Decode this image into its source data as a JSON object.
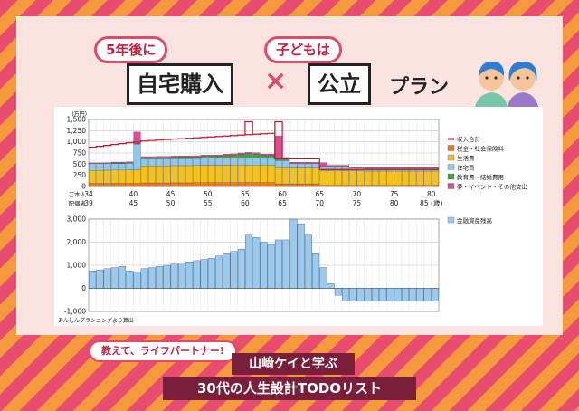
{
  "header": {
    "tag1": "5年後に",
    "box1": "自宅購入",
    "times": "×",
    "tag2": "子どもは",
    "box2": "公立",
    "plan": "プラン"
  },
  "footer": {
    "catch": "教えて、ライフパートナー!",
    "banner1": "山﨑ケイと学ぶ",
    "banner2": "30代の人生設計TODOリスト"
  },
  "source": "あんしんプランニングより算出",
  "colors": {
    "income": "#c8102e",
    "tax": "#ee7a1a",
    "living": "#f4c21e",
    "housing": "#8fc8ec",
    "education": "#3fa33f",
    "dream": "#d94f92",
    "assets": "#9cc9ec"
  },
  "chart_data": [
    {
      "type": "bar",
      "stacked": true,
      "ylabel": "(万円)",
      "ylim": [
        0,
        1500
      ],
      "yticks": [
        "0",
        "250",
        "500",
        "750",
        "1,000",
        "1,250",
        "1,500"
      ],
      "xaxis_rows": [
        {
          "label": "ご本人",
          "ticks": [
            "34",
            "40",
            "45",
            "50",
            "55",
            "60",
            "65",
            "70",
            "75",
            "80"
          ]
        },
        {
          "label": "配偶者",
          "ticks": [
            "39",
            "45",
            "50",
            "55",
            "60",
            "65",
            "70",
            "75",
            "80",
            "85 (歳)"
          ]
        }
      ],
      "x": [
        34,
        35,
        36,
        37,
        38,
        39,
        40,
        41,
        42,
        43,
        44,
        45,
        46,
        47,
        48,
        49,
        50,
        51,
        52,
        53,
        54,
        55,
        56,
        57,
        58,
        59,
        60,
        61,
        62,
        63,
        64,
        65,
        66,
        67,
        68,
        69,
        70,
        71,
        72,
        73,
        74,
        75,
        76,
        77,
        78,
        79,
        80
      ],
      "grid": true,
      "legend_position": "right",
      "series": [
        {
          "name": "税金・社会保険料",
          "color_key": "tax",
          "values": [
            70,
            70,
            70,
            72,
            72,
            72,
            72,
            80,
            80,
            80,
            80,
            82,
            82,
            82,
            84,
            84,
            84,
            86,
            86,
            86,
            86,
            88,
            88,
            88,
            88,
            60,
            60,
            60,
            60,
            60,
            60,
            25,
            25,
            25,
            25,
            25,
            25,
            25,
            25,
            25,
            25,
            25,
            25,
            25,
            25,
            25,
            25
          ]
        },
        {
          "name": "生活費",
          "color_key": "living",
          "values": [
            290,
            290,
            295,
            295,
            295,
            300,
            300,
            380,
            380,
            380,
            380,
            385,
            385,
            385,
            385,
            390,
            390,
            390,
            390,
            395,
            395,
            395,
            390,
            390,
            390,
            360,
            360,
            355,
            355,
            355,
            350,
            330,
            330,
            330,
            330,
            330,
            330,
            320,
            320,
            320,
            320,
            320,
            320,
            320,
            320,
            320,
            320
          ]
        },
        {
          "name": "住宅費",
          "color_key": "housing",
          "values": [
            150,
            150,
            150,
            150,
            150,
            150,
            580,
            160,
            160,
            160,
            160,
            160,
            160,
            160,
            160,
            160,
            160,
            160,
            160,
            160,
            160,
            160,
            160,
            160,
            160,
            160,
            160,
            100,
            100,
            100,
            100,
            100,
            100,
            100,
            100,
            60,
            60,
            60,
            60,
            60,
            60,
            60,
            60,
            60,
            60,
            60,
            60
          ]
        },
        {
          "name": "教育費・結婚費用",
          "color_key": "education",
          "values": [
            0,
            0,
            0,
            10,
            10,
            10,
            10,
            20,
            20,
            25,
            25,
            25,
            30,
            30,
            30,
            40,
            40,
            40,
            60,
            60,
            80,
            90,
            90,
            60,
            60,
            50,
            40,
            0,
            0,
            0,
            0,
            0,
            0,
            0,
            0,
            0,
            0,
            0,
            0,
            0,
            0,
            0,
            0,
            0,
            0,
            0,
            0
          ]
        },
        {
          "name": "夢・イベント・その他支出",
          "color_key": "dream",
          "values": [
            20,
            20,
            20,
            20,
            20,
            20,
            260,
            30,
            30,
            30,
            30,
            30,
            30,
            30,
            30,
            30,
            30,
            30,
            30,
            30,
            30,
            30,
            30,
            30,
            30,
            500,
            30,
            30,
            30,
            30,
            30,
            80,
            20,
            20,
            20,
            20,
            20,
            20,
            20,
            20,
            20,
            20,
            20,
            20,
            20,
            20,
            20
          ]
        }
      ],
      "lines": [
        {
          "name": "収入合計",
          "color_key": "income",
          "values": [
            880,
            900,
            920,
            940,
            960,
            980,
            1000,
            1020,
            1030,
            1040,
            1050,
            1060,
            1070,
            1080,
            1090,
            1100,
            1110,
            1120,
            1130,
            1140,
            1150,
            1160,
            1170,
            1180,
            1190,
            620,
            620,
            620,
            620,
            620,
            620,
            380,
            380,
            380,
            380,
            380,
            380,
            380,
            380,
            380,
            380,
            380,
            380,
            380,
            380,
            380,
            380
          ],
          "spikes": [
            {
              "x": 55,
              "value": 1450
            },
            {
              "x": 59,
              "value": 1450
            }
          ]
        }
      ]
    },
    {
      "type": "bar",
      "ylabel": "",
      "ylim": [
        -1000,
        3000
      ],
      "yticks": [
        "-1,000",
        "0",
        "1,000",
        "2,000",
        "3,000"
      ],
      "x": [
        34,
        35,
        36,
        37,
        38,
        39,
        40,
        41,
        42,
        43,
        44,
        45,
        46,
        47,
        48,
        49,
        50,
        51,
        52,
        53,
        54,
        55,
        56,
        57,
        58,
        59,
        60,
        61,
        62,
        63,
        64,
        65,
        66,
        67,
        68,
        69,
        70,
        71,
        72,
        73,
        74,
        75,
        76,
        77,
        78,
        79,
        80
      ],
      "grid": true,
      "legend_position": "right",
      "series": [
        {
          "name": "金融資産残高",
          "color_key": "assets",
          "values": [
            750,
            800,
            850,
            900,
            950,
            750,
            720,
            850,
            900,
            950,
            1000,
            1050,
            1100,
            1150,
            1200,
            1250,
            1300,
            1400,
            1500,
            1600,
            1700,
            2300,
            2200,
            2000,
            1900,
            2100,
            2100,
            3000,
            2800,
            2300,
            1500,
            900,
            200,
            -300,
            -500,
            -550,
            -550,
            -550,
            -550,
            -550,
            -550,
            -550,
            -550,
            -550,
            -550,
            -550,
            -550
          ]
        }
      ]
    }
  ]
}
